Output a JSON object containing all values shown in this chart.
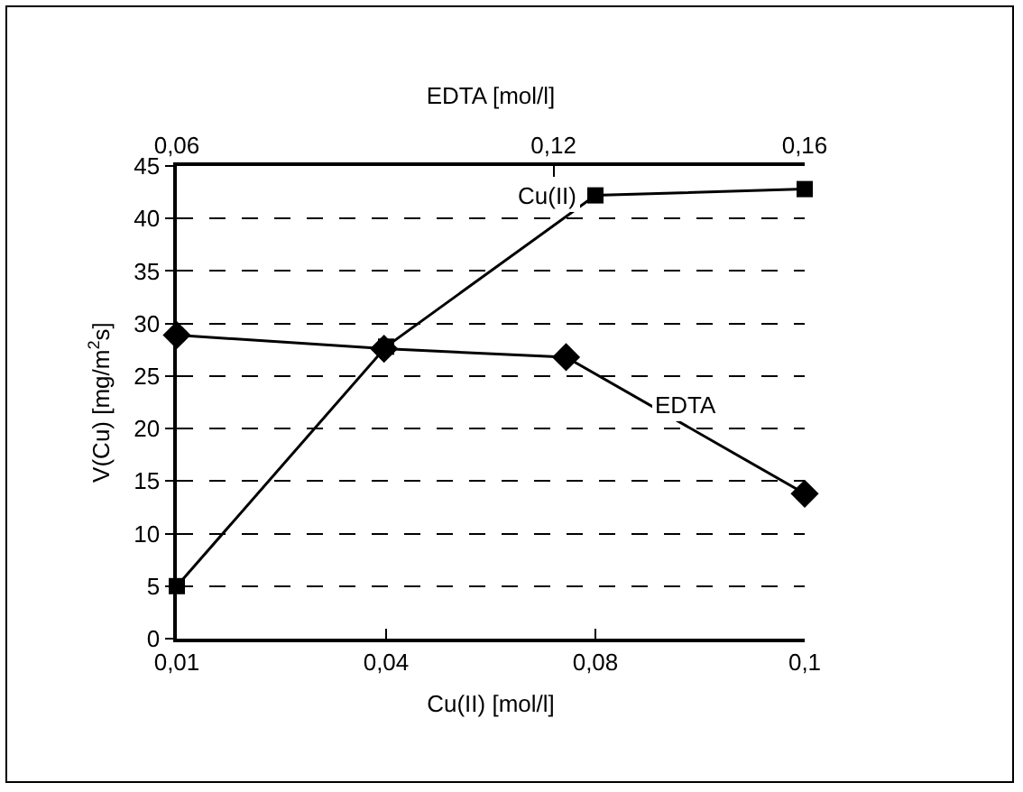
{
  "chart_data": {
    "type": "line",
    "xlabel": "Cu(II) [mol/l]",
    "ylabel": "V(Cu) [mg/m$^{2}$s]",
    "x2label": "EDTA [mol/l]",
    "categories": [
      "0,01",
      "0,04",
      "0,08",
      "0,1"
    ],
    "ylim": [
      0,
      45
    ],
    "yticks": [
      0,
      5,
      10,
      15,
      20,
      25,
      30,
      35,
      40,
      45
    ],
    "x2lim": [
      0.06,
      0.16
    ],
    "x2ticks": [
      {
        "value": 0.06,
        "label": "0,06"
      },
      {
        "value": 0.12,
        "label": "0,12"
      },
      {
        "value": 0.16,
        "label": "0,16"
      }
    ],
    "series": [
      {
        "name": "Cu(II)",
        "color": "#000000",
        "marker": "square",
        "values": [
          5,
          27.8,
          42.2,
          42.8
        ]
      },
      {
        "name": "EDTA",
        "color": "#000000",
        "marker": "diamond",
        "axis": "x2",
        "x": [
          0.06,
          0.093,
          0.122,
          0.16
        ],
        "values": [
          28.9,
          27.6,
          26.8,
          13.8
        ]
      }
    ],
    "grid": "y",
    "legend": false
  }
}
